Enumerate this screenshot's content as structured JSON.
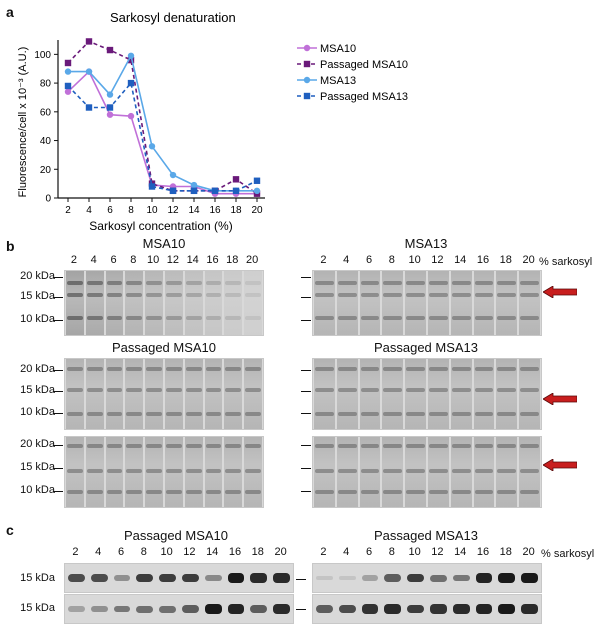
{
  "panels": {
    "a": "a",
    "b": "b",
    "c": "c"
  },
  "chart_data": {
    "type": "line",
    "title": "Sarkosyl denaturation",
    "xlabel": "Sarkosyl concentration (%)",
    "ylabel": "Fluorescence/cell x 10⁻³ (A.U.)",
    "x": [
      2,
      4,
      6,
      8,
      10,
      12,
      14,
      16,
      18,
      20
    ],
    "ylim": [
      0,
      110
    ],
    "yticks": [
      0,
      20,
      40,
      60,
      80,
      100
    ],
    "series": [
      {
        "name": "MSA10",
        "color": "#c070d8",
        "dashed": false,
        "marker": "circle",
        "values": [
          74,
          88,
          58,
          57,
          9,
          8,
          8,
          3,
          3,
          3
        ]
      },
      {
        "name": "Passaged MSA10",
        "color": "#6a1a7a",
        "dashed": true,
        "marker": "square",
        "values": [
          94,
          109,
          103,
          96,
          10,
          5,
          5,
          5,
          13,
          3
        ]
      },
      {
        "name": "MSA13",
        "color": "#5aa8e8",
        "dashed": false,
        "marker": "circle",
        "values": [
          88,
          88,
          72,
          99,
          36,
          16,
          9,
          5,
          5,
          5
        ]
      },
      {
        "name": "Passaged MSA13",
        "color": "#1f5fbf",
        "dashed": true,
        "marker": "square",
        "values": [
          78,
          63,
          63,
          80,
          8,
          5,
          5,
          5,
          5,
          12
        ]
      }
    ]
  },
  "blots_b": {
    "left_top_title": "MSA10",
    "right_top_title": "MSA13",
    "left_mid_title": "Passaged MSA10",
    "right_mid_title": "Passaged MSA13",
    "lanes": [
      "2",
      "4",
      "6",
      "8",
      "10",
      "12",
      "14",
      "16",
      "18",
      "20"
    ],
    "unit_label": "% sarkosyl",
    "kda_rows": [
      [
        "20 kDa",
        "15 kDa",
        "10 kDa"
      ],
      [
        "20 kDa",
        "15 kDa",
        "10 kDa"
      ],
      [
        "20 kDa",
        "15 kDa",
        "10 kDa"
      ]
    ]
  },
  "blots_c": {
    "left_title": "Passaged MSA10",
    "right_title": "Passaged MSA13",
    "lanes": [
      "2",
      "4",
      "6",
      "8",
      "10",
      "12",
      "14",
      "16",
      "18",
      "20"
    ],
    "unit_label": "% sarkosyl",
    "kda": [
      "15 kDa",
      "15 kDa"
    ],
    "band_intensity": {
      "left_row1": [
        0.7,
        0.7,
        0.3,
        0.8,
        0.8,
        0.8,
        0.35,
        1.0,
        0.9,
        0.9
      ],
      "right_row1": [
        0.0,
        0.0,
        0.2,
        0.6,
        0.8,
        0.5,
        0.45,
        0.95,
        1.0,
        1.0
      ],
      "left_row2": [
        0.2,
        0.3,
        0.45,
        0.5,
        0.5,
        0.6,
        1.0,
        0.95,
        0.6,
        0.9
      ],
      "right_row2": [
        0.6,
        0.7,
        0.85,
        0.9,
        0.8,
        0.85,
        0.9,
        0.95,
        1.0,
        0.9
      ]
    }
  }
}
